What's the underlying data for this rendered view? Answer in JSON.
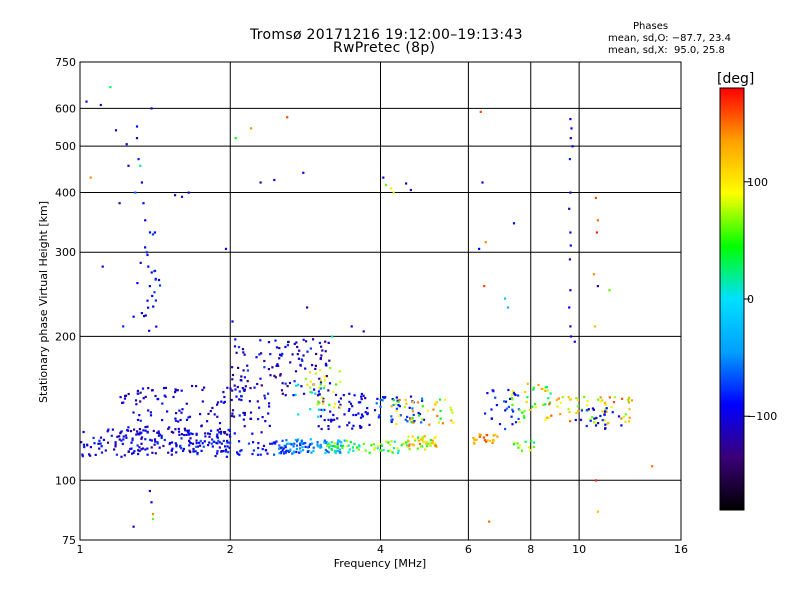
{
  "header": {
    "title": "Tromsø 20171216 19:12:00–19:13:43",
    "subtitle": "RwPretec (8p)",
    "phases_label": "Phases",
    "phase_o": "mean, sd,O: −87.7, 23.4",
    "phase_x": "mean, sd,X:  95.0, 25.8"
  },
  "colors": {
    "grid": "#000000",
    "colorbar_stops": [
      "#000000",
      "#3a0078",
      "#0000ff",
      "#00a0ff",
      "#00e0ff",
      "#00ff00",
      "#ffff00",
      "#ffa000",
      "#ff0000"
    ]
  },
  "chart_data": {
    "type": "scatter",
    "title": "Tromsø 20171216 19:12:00–19:13:43",
    "subtitle": "RwPretec (8p)",
    "xlabel": "Frequency [MHz]",
    "ylabel": "Stationary phase Virtual Height [km]",
    "x_scale": "log",
    "y_scale": "log",
    "xlim": [
      1,
      16
    ],
    "ylim": [
      75,
      750
    ],
    "x_ticks": [
      1,
      2,
      4,
      6,
      8,
      10,
      16
    ],
    "x_tick_labels": [
      "1",
      "2",
      "4",
      "6",
      "8",
      "10",
      "16"
    ],
    "y_ticks": [
      75,
      100,
      200,
      300,
      400,
      500,
      600,
      750
    ],
    "y_tick_labels": [
      "75",
      "100",
      "200",
      "300",
      "400",
      "500",
      "600",
      "750"
    ],
    "grid": true,
    "colorbar": {
      "label": "[deg]",
      "range": [
        -180,
        180
      ],
      "ticks": [
        100,
        0,
        -100
      ],
      "tick_labels": [
        "100",
        "0",
        "−100"
      ]
    },
    "points": [
      [
        1.03,
        620,
        -100
      ],
      [
        1.05,
        430,
        140
      ],
      [
        1.1,
        610,
        -120
      ],
      [
        1.15,
        665,
        30
      ],
      [
        1.18,
        540,
        -120
      ],
      [
        1.24,
        505,
        -110
      ],
      [
        1.25,
        455,
        -100
      ],
      [
        1.3,
        520,
        -115
      ],
      [
        1.31,
        470,
        -80
      ],
      [
        1.33,
        420,
        -100
      ],
      [
        1.34,
        380,
        -90
      ],
      [
        1.35,
        350,
        -100
      ],
      [
        1.36,
        300,
        -80
      ],
      [
        1.37,
        280,
        -100
      ],
      [
        1.38,
        255,
        -90
      ],
      [
        1.39,
        600,
        -110
      ],
      [
        1.32,
        455,
        20
      ],
      [
        1.29,
        400,
        -60
      ],
      [
        1.3,
        550,
        -90
      ],
      [
        1.55,
        395,
        -120
      ],
      [
        1.6,
        392,
        -110
      ],
      [
        1.65,
        400,
        -100
      ],
      [
        1.11,
        280,
        -100
      ],
      [
        1.2,
        380,
        -120
      ],
      [
        1.22,
        210,
        -80
      ],
      [
        1.28,
        220,
        -90
      ],
      [
        2.05,
        520,
        40
      ],
      [
        2.2,
        545,
        140
      ],
      [
        2.3,
        420,
        -120
      ],
      [
        2.45,
        425,
        -110
      ],
      [
        2.6,
        575,
        160
      ],
      [
        2.8,
        440,
        -90
      ],
      [
        1.96,
        305,
        -100
      ],
      [
        2.02,
        215,
        -90
      ],
      [
        2.85,
        230,
        -110
      ],
      [
        3.2,
        200,
        20
      ],
      [
        3.5,
        210,
        -100
      ],
      [
        3.7,
        205,
        -120
      ],
      [
        4.05,
        430,
        -90
      ],
      [
        4.1,
        415,
        60
      ],
      [
        4.2,
        408,
        100
      ],
      [
        4.25,
        400,
        80
      ],
      [
        4.5,
        418,
        -120
      ],
      [
        4.6,
        405,
        -110
      ],
      [
        6.35,
        590,
        160
      ],
      [
        6.4,
        420,
        -100
      ],
      [
        6.5,
        315,
        140
      ],
      [
        6.45,
        255,
        160
      ],
      [
        6.3,
        305,
        -90
      ],
      [
        7.1,
        240,
        -20
      ],
      [
        7.2,
        230,
        -30
      ],
      [
        7.4,
        345,
        -90
      ],
      [
        9.6,
        570,
        -100
      ],
      [
        9.65,
        545,
        -90
      ],
      [
        9.62,
        520,
        -110
      ],
      [
        9.7,
        500,
        -100
      ],
      [
        9.58,
        470,
        -80
      ],
      [
        9.6,
        400,
        -100
      ],
      [
        9.55,
        370,
        -120
      ],
      [
        9.6,
        330,
        -100
      ],
      [
        9.62,
        310,
        -90
      ],
      [
        9.58,
        290,
        -110
      ],
      [
        9.6,
        250,
        -100
      ],
      [
        9.55,
        230,
        -90
      ],
      [
        9.6,
        210,
        -120
      ],
      [
        9.63,
        200,
        -110
      ],
      [
        9.8,
        195,
        -100
      ],
      [
        10.8,
        390,
        160
      ],
      [
        10.9,
        350,
        150
      ],
      [
        10.85,
        330,
        170
      ],
      [
        10.7,
        270,
        140
      ],
      [
        10.75,
        210,
        120
      ],
      [
        10.9,
        255,
        -110
      ],
      [
        11.5,
        250,
        60
      ],
      [
        1.38,
        95,
        -110
      ],
      [
        1.39,
        90,
        -100
      ],
      [
        1.4,
        85,
        140
      ],
      [
        1.4,
        83,
        60
      ],
      [
        1.28,
        80,
        -110
      ],
      [
        6.6,
        82,
        150
      ],
      [
        10.8,
        100,
        170
      ],
      [
        10.9,
        86,
        120
      ],
      [
        14.0,
        107,
        150
      ]
    ]
  }
}
